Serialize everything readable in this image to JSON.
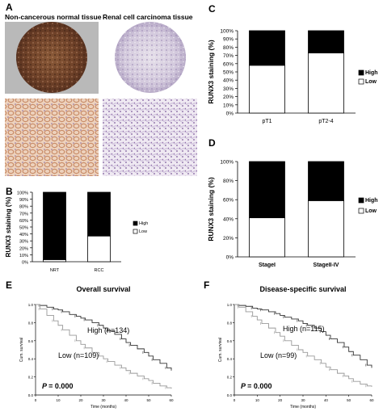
{
  "panels": {
    "A": {
      "label": "A",
      "titles": [
        "Non-cancerous normal tissue",
        "Renal cell carcinoma tissue"
      ]
    },
    "B": {
      "label": "B"
    },
    "C": {
      "label": "C"
    },
    "D": {
      "label": "D"
    },
    "E": {
      "label": "E"
    },
    "F": {
      "label": "F"
    }
  },
  "chart_data": [
    {
      "id": "B",
      "type": "bar",
      "categories": [
        "NRT",
        "RCC"
      ],
      "series": [
        {
          "name": "High",
          "values": [
            97,
            63
          ],
          "color": "#000000"
        },
        {
          "name": "Low",
          "values": [
            3,
            37
          ],
          "color": "#ffffff"
        }
      ],
      "stacked": true,
      "ylabel": "RUNX3 staining (%)",
      "ylim": [
        0,
        100
      ],
      "yticks": [
        "0%",
        "10%",
        "20%",
        "30%",
        "40%",
        "50%",
        "60%",
        "70%",
        "80%",
        "90%",
        "100%"
      ],
      "legend": [
        "High",
        "Low"
      ],
      "legend_position": "right"
    },
    {
      "id": "C",
      "type": "bar",
      "categories": [
        "pT1",
        "pT2-4"
      ],
      "series": [
        {
          "name": "High",
          "values": [
            42,
            27
          ],
          "color": "#000000"
        },
        {
          "name": "Low",
          "values": [
            58,
            73
          ],
          "color": "#ffffff"
        }
      ],
      "stacked": true,
      "ylabel": "RUNX3 staining (%)",
      "ylim": [
        0,
        100
      ],
      "yticks": [
        "0%",
        "10%",
        "20%",
        "30%",
        "40%",
        "50%",
        "60%",
        "70%",
        "80%",
        "90%",
        "100%"
      ],
      "legend": [
        "High",
        "Low"
      ],
      "legend_position": "right"
    },
    {
      "id": "D",
      "type": "bar",
      "categories": [
        "StageI",
        "StageII-IV"
      ],
      "series": [
        {
          "name": "High",
          "values": [
            59,
            41
          ],
          "color": "#000000"
        },
        {
          "name": "Low",
          "values": [
            41,
            59
          ],
          "color": "#ffffff"
        }
      ],
      "stacked": true,
      "ylabel": "RUNX3 staining (%)",
      "ylim": [
        0,
        100
      ],
      "yticks": [
        "0%",
        "20%",
        "40%",
        "60%",
        "80%",
        "100%"
      ],
      "legend": [
        "High",
        "Low"
      ],
      "legend_position": "right"
    },
    {
      "id": "E",
      "type": "line",
      "title": "Overall survival",
      "xlabel": "Time (months)",
      "ylabel": "Cum. survival",
      "xlim": [
        0,
        60
      ],
      "ylim": [
        0,
        1.0
      ],
      "xticks": [
        0,
        10,
        20,
        30,
        40,
        50,
        60
      ],
      "yticks": [
        "0.0",
        "0.2",
        "0.4",
        "0.6",
        "0.8",
        "1.0"
      ],
      "series": [
        {
          "name": "High (n=134)",
          "color": "#333333",
          "x": [
            0,
            2,
            5,
            8,
            10,
            12,
            15,
            18,
            20,
            22,
            25,
            28,
            30,
            32,
            35,
            38,
            40,
            42,
            45,
            48,
            50,
            52,
            55,
            58,
            60
          ],
          "y": [
            1.0,
            0.99,
            0.97,
            0.95,
            0.94,
            0.92,
            0.89,
            0.87,
            0.85,
            0.83,
            0.8,
            0.77,
            0.74,
            0.71,
            0.67,
            0.62,
            0.58,
            0.55,
            0.51,
            0.47,
            0.43,
            0.39,
            0.35,
            0.3,
            0.27
          ]
        },
        {
          "name": "Low (n=109)",
          "color": "#999999",
          "x": [
            0,
            2,
            5,
            8,
            10,
            12,
            15,
            18,
            20,
            22,
            25,
            28,
            30,
            32,
            35,
            38,
            40,
            42,
            45,
            48,
            50,
            52,
            55,
            58,
            60
          ],
          "y": [
            1.0,
            0.95,
            0.88,
            0.82,
            0.77,
            0.72,
            0.66,
            0.6,
            0.56,
            0.52,
            0.47,
            0.43,
            0.4,
            0.37,
            0.33,
            0.3,
            0.27,
            0.24,
            0.21,
            0.18,
            0.16,
            0.13,
            0.1,
            0.08,
            0.07
          ]
        }
      ],
      "annotations": {
        "high": "High (n=134)",
        "low": "Low (n=109)"
      },
      "p_label": "P",
      "p_value": "= 0.000"
    },
    {
      "id": "F",
      "type": "line",
      "title": "Disease-specific survival",
      "xlabel": "Time (months)",
      "ylabel": "Cum. survival",
      "xlim": [
        0,
        60
      ],
      "ylim": [
        0,
        1.0
      ],
      "xticks": [
        0,
        10,
        20,
        30,
        40,
        50,
        60
      ],
      "yticks": [
        "0.0",
        "0.2",
        "0.4",
        "0.6",
        "0.8",
        "1.0"
      ],
      "series": [
        {
          "name": "High (n=115)",
          "color": "#333333",
          "x": [
            0,
            2,
            5,
            8,
            10,
            12,
            15,
            18,
            20,
            22,
            25,
            28,
            30,
            32,
            35,
            38,
            40,
            42,
            45,
            48,
            50,
            52,
            55,
            58,
            60
          ],
          "y": [
            1.0,
            0.99,
            0.98,
            0.96,
            0.95,
            0.94,
            0.92,
            0.9,
            0.88,
            0.86,
            0.84,
            0.82,
            0.79,
            0.77,
            0.74,
            0.7,
            0.66,
            0.62,
            0.58,
            0.53,
            0.48,
            0.44,
            0.39,
            0.33,
            0.3
          ]
        },
        {
          "name": "Low (n=99)",
          "color": "#999999",
          "x": [
            0,
            2,
            5,
            8,
            10,
            12,
            15,
            18,
            20,
            22,
            25,
            28,
            30,
            32,
            35,
            38,
            40,
            42,
            45,
            48,
            50,
            52,
            55,
            58,
            60
          ],
          "y": [
            1.0,
            0.97,
            0.92,
            0.87,
            0.83,
            0.79,
            0.74,
            0.69,
            0.65,
            0.6,
            0.55,
            0.5,
            0.47,
            0.43,
            0.39,
            0.35,
            0.31,
            0.28,
            0.24,
            0.21,
            0.18,
            0.15,
            0.12,
            0.1,
            0.09
          ]
        }
      ],
      "annotations": {
        "high": "High (n=115)",
        "low": "Low (n=99)"
      },
      "p_label": "P",
      "p_value": "= 0.000"
    }
  ]
}
